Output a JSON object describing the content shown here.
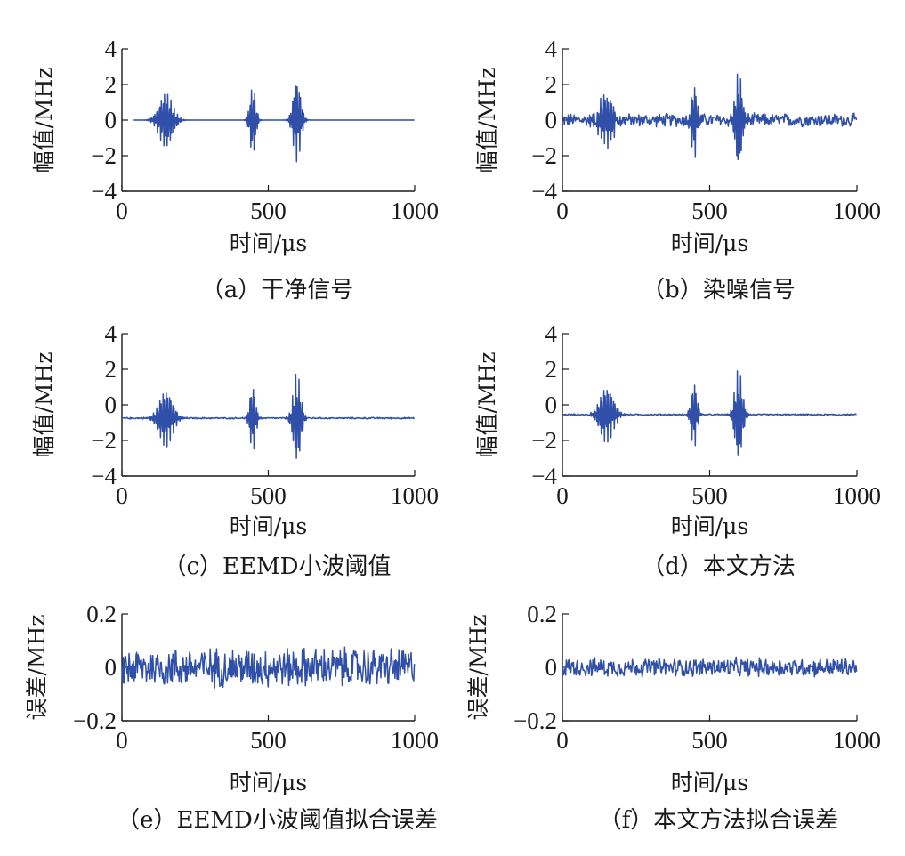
{
  "line_color": "#2f4fa8",
  "chart_data": [
    {
      "type": "line",
      "caption": "（a）干净信号",
      "xlabel": "时间/μs",
      "ylabel": "幅值/MHz",
      "xlim": [
        0,
        1000
      ],
      "ylim": [
        -4,
        4
      ],
      "xticks": [
        "0",
        "500",
        "1000"
      ],
      "yticks": [
        "4",
        "2",
        "0",
        "−2",
        "−4"
      ],
      "xtick_values": [
        0,
        500,
        1000
      ],
      "ytick_values": [
        4,
        2,
        0,
        -2,
        -4
      ],
      "grid": false,
      "series": [
        {
          "baseline": 0,
          "noise": 0,
          "bursts": [
            {
              "center": 150,
              "width": 90,
              "amplitude": 1.55
            },
            {
              "center": 447,
              "width": 38,
              "amplitude": 2.0
            },
            {
              "center": 598,
              "width": 50,
              "amplitude": 2.35
            }
          ],
          "x_start": 40,
          "x_end": 1000
        }
      ]
    },
    {
      "type": "line",
      "caption": "（b）染噪信号",
      "xlabel": "时间/μs",
      "ylabel": "幅值/MHz",
      "xlim": [
        0,
        1000
      ],
      "ylim": [
        -4,
        4
      ],
      "xticks": [
        "0",
        "500",
        "1000"
      ],
      "yticks": [
        "4",
        "2",
        "0",
        "−2",
        "−4"
      ],
      "xtick_values": [
        0,
        500,
        1000
      ],
      "ytick_values": [
        4,
        2,
        0,
        -2,
        -4
      ],
      "grid": false,
      "series": [
        {
          "baseline": 0,
          "noise": 0.42,
          "bursts": [
            {
              "center": 150,
              "width": 90,
              "amplitude": 1.55
            },
            {
              "center": 447,
              "width": 38,
              "amplitude": 2.2
            },
            {
              "center": 598,
              "width": 50,
              "amplitude": 2.6
            }
          ],
          "x_start": 0,
          "x_end": 1000
        }
      ]
    },
    {
      "type": "line",
      "caption": "（c）EEMD小波阈值",
      "xlabel": "时间/μs",
      "ylabel": "幅值/MHz",
      "xlim": [
        0,
        1000
      ],
      "ylim": [
        -4,
        4
      ],
      "xticks": [
        "0",
        "500",
        "1000"
      ],
      "yticks": [
        "4",
        "2",
        "0",
        "−2",
        "−4"
      ],
      "xtick_values": [
        0,
        500,
        1000
      ],
      "ytick_values": [
        4,
        2,
        0,
        -2,
        -4
      ],
      "grid": false,
      "series": [
        {
          "baseline": -0.75,
          "noise": 0.05,
          "bursts": [
            {
              "center": 150,
              "width": 90,
              "amplitude": 1.6
            },
            {
              "center": 447,
              "width": 38,
              "amplitude": 1.9
            },
            {
              "center": 598,
              "width": 50,
              "amplitude": 2.6
            }
          ],
          "x_start": 0,
          "x_end": 1000
        }
      ]
    },
    {
      "type": "line",
      "caption": "（d）本文方法",
      "xlabel": "时间/μs",
      "ylabel": "幅值/MHz",
      "xlim": [
        0,
        1000
      ],
      "ylim": [
        -4,
        4
      ],
      "xticks": [
        "0",
        "500",
        "1000"
      ],
      "yticks": [
        "4",
        "2",
        "0",
        "−2",
        "−4"
      ],
      "xtick_values": [
        0,
        500,
        1000
      ],
      "ytick_values": [
        4,
        2,
        0,
        -2,
        -4
      ],
      "grid": false,
      "series": [
        {
          "baseline": -0.55,
          "noise": 0.05,
          "bursts": [
            {
              "center": 150,
              "width": 90,
              "amplitude": 1.6
            },
            {
              "center": 447,
              "width": 38,
              "amplitude": 1.9
            },
            {
              "center": 598,
              "width": 50,
              "amplitude": 2.6
            }
          ],
          "x_start": 0,
          "x_end": 1000
        }
      ]
    },
    {
      "type": "line",
      "caption": "（e）EEMD小波阈值拟合误差",
      "xlabel": "时间/μs",
      "ylabel": "误差/MHz",
      "xlim": [
        0,
        1000
      ],
      "ylim": [
        -0.2,
        0.2
      ],
      "xticks": [
        "0",
        "500",
        "1000"
      ],
      "yticks": [
        "0.2",
        "0",
        "−0.2"
      ],
      "xtick_values": [
        0,
        500,
        1000
      ],
      "ytick_values": [
        0.2,
        0,
        -0.2
      ],
      "grid": false,
      "series": [
        {
          "baseline": 0,
          "noise": 0.085,
          "bursts": [],
          "x_start": 0,
          "x_end": 1000
        }
      ]
    },
    {
      "type": "line",
      "caption": "（f）本文方法拟合误差",
      "xlabel": "时间/μs",
      "ylabel": "误差/MHz",
      "xlim": [
        0,
        1000
      ],
      "ylim": [
        -0.2,
        0.2
      ],
      "xticks": [
        "0",
        "500",
        "1000"
      ],
      "yticks": [
        "0.2",
        "0",
        "−0.2"
      ],
      "xtick_values": [
        0,
        500,
        1000
      ],
      "ytick_values": [
        0.2,
        0,
        -0.2
      ],
      "grid": false,
      "series": [
        {
          "baseline": 0,
          "noise": 0.04,
          "bursts": [],
          "x_start": 0,
          "x_end": 1000
        }
      ]
    }
  ]
}
